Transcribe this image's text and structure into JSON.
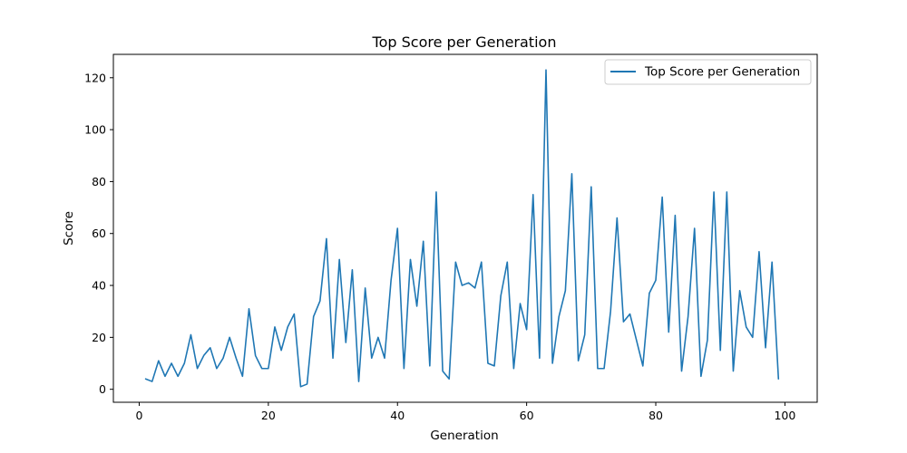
{
  "chart_data": {
    "type": "line",
    "title": "Top Score per Generation",
    "xlabel": "Generation",
    "ylabel": "Score",
    "xlim": [
      -4,
      105
    ],
    "ylim": [
      -5,
      129
    ],
    "xticks": [
      0,
      20,
      40,
      60,
      80,
      100
    ],
    "yticks": [
      0,
      20,
      40,
      60,
      80,
      100,
      120
    ],
    "grid": false,
    "legend": "top-right",
    "series": [
      {
        "name": "Top Score per Generation",
        "color": "#1f77b4",
        "x": [
          1,
          2,
          3,
          4,
          5,
          6,
          7,
          8,
          9,
          10,
          11,
          12,
          13,
          14,
          15,
          16,
          17,
          18,
          19,
          20,
          21,
          22,
          23,
          24,
          25,
          26,
          27,
          28,
          29,
          30,
          31,
          32,
          33,
          34,
          35,
          36,
          37,
          38,
          39,
          40,
          41,
          42,
          43,
          44,
          45,
          46,
          47,
          48,
          49,
          50,
          51,
          52,
          53,
          54,
          55,
          56,
          57,
          58,
          59,
          60,
          61,
          62,
          63,
          64,
          65,
          66,
          67,
          68,
          69,
          70,
          71,
          72,
          73,
          74,
          75,
          76,
          77,
          78,
          79,
          80,
          81,
          82,
          83,
          84,
          85,
          86,
          87,
          88,
          89,
          90,
          91,
          92,
          93,
          94,
          95,
          96,
          97,
          98,
          99
        ],
        "values": [
          4,
          3,
          11,
          5,
          10,
          5,
          10,
          21,
          8,
          13,
          16,
          8,
          12,
          20,
          12,
          5,
          31,
          13,
          8,
          8,
          24,
          15,
          24,
          29,
          1,
          2,
          28,
          34,
          58,
          12,
          50,
          18,
          46,
          3,
          39,
          12,
          20,
          12,
          42,
          62,
          8,
          50,
          32,
          57,
          9,
          76,
          7,
          4,
          49,
          40,
          41,
          39,
          49,
          10,
          9,
          36,
          49,
          8,
          33,
          23,
          75,
          12,
          123,
          10,
          28,
          38,
          83,
          11,
          21,
          78,
          8,
          8,
          30,
          66,
          26,
          29,
          19,
          9,
          37,
          42,
          74,
          22,
          67,
          7,
          28,
          62,
          5,
          19,
          76,
          15,
          76,
          7,
          38,
          24,
          20,
          53,
          16,
          49,
          4
        ]
      }
    ]
  }
}
